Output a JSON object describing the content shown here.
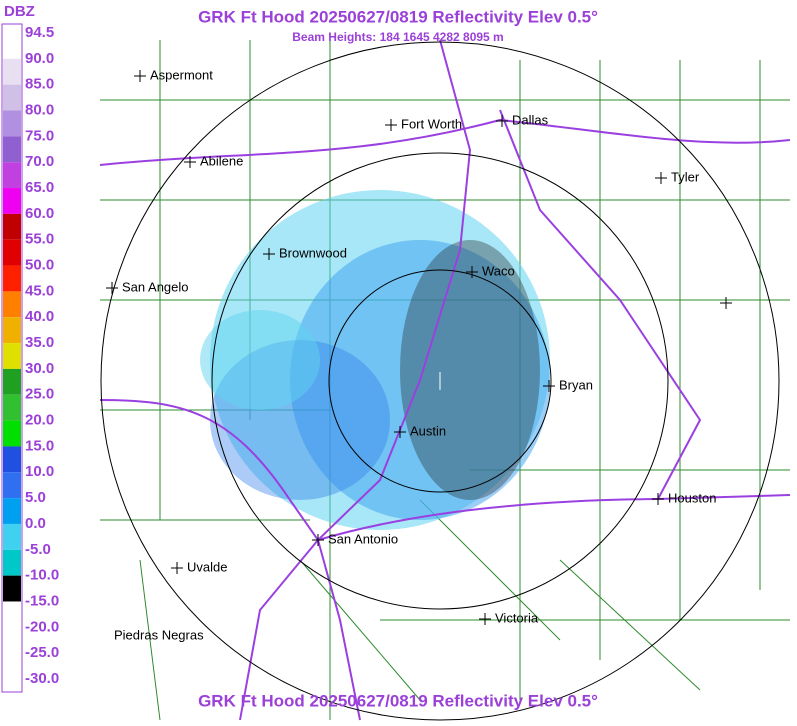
{
  "header": {
    "title": "GRK Ft Hood 20250627/0819 Reflectivity Elev 0.5°",
    "subtitle": "Beam Heights: 184 1645 4282 8095 m",
    "footer_title": "GRK Ft Hood 20250627/0819 Reflectivity Elev 0.5°"
  },
  "legend": {
    "unit": "DBZ",
    "labels": [
      "94.5",
      "90.0",
      "85.0",
      "80.0",
      "75.0",
      "70.0",
      "65.0",
      "60.0",
      "55.0",
      "50.0",
      "45.0",
      "40.0",
      "35.0",
      "30.0",
      "25.0",
      "20.0",
      "15.0",
      "10.0",
      "5.0",
      "0.0",
      "-5.0",
      "-10.0",
      "-15.0",
      "-20.0",
      "-25.0",
      "-30.0"
    ]
  },
  "cities": [
    "Aspermont",
    "Abilene",
    "Fort Worth",
    "Dallas",
    "Tyler",
    "Brownwood",
    "Waco",
    "San Angelo",
    "Bryan",
    "Austin",
    "Houston",
    "San Antonio",
    "Uvalde",
    "Victoria",
    "Piedras Negras"
  ]
}
